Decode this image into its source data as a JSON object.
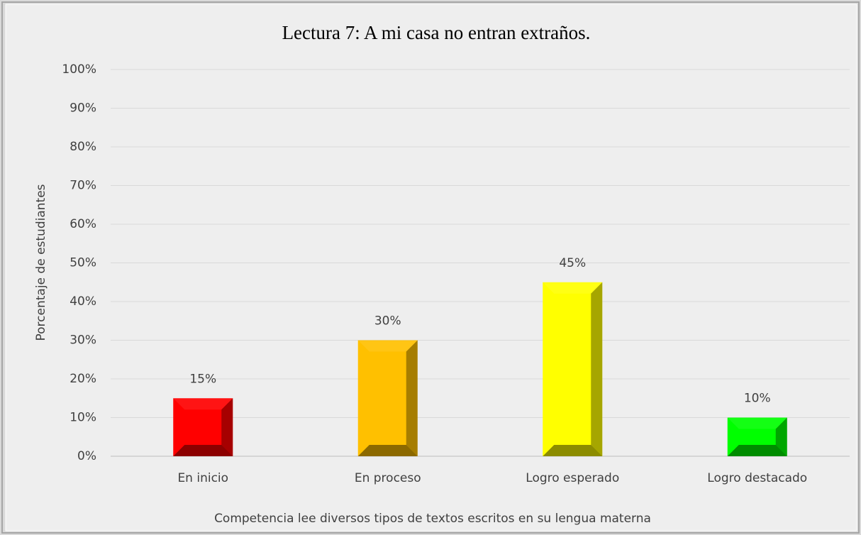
{
  "chart_data": {
    "type": "bar",
    "title": "Lectura 7: A mi casa no entran extraños.",
    "y_label": "Porcentaje de estudiantes",
    "x_label": "Competencia lee diversos tipos de textos escritos en su lengua materna",
    "categories": [
      "En inicio",
      "En proceso",
      "Logro esperado",
      "Logro destacado"
    ],
    "values": [
      15,
      30,
      45,
      10
    ],
    "value_labels": [
      "15%",
      "30%",
      "45%",
      "10%"
    ],
    "colors": [
      "#ff0000",
      "#ffc000",
      "#ffff00",
      "#00ff00"
    ],
    "ylim": [
      0,
      100
    ],
    "yticks": [
      {
        "value": 0,
        "label": "0%"
      },
      {
        "value": 10,
        "label": "10%"
      },
      {
        "value": 20,
        "label": "20%"
      },
      {
        "value": 30,
        "label": "30%"
      },
      {
        "value": 40,
        "label": "40%"
      },
      {
        "value": 50,
        "label": "50%"
      },
      {
        "value": 60,
        "label": "60%"
      },
      {
        "value": 70,
        "label": "70%"
      },
      {
        "value": 80,
        "label": "80%"
      },
      {
        "value": 90,
        "label": "90%"
      },
      {
        "value": 100,
        "label": "100%"
      }
    ],
    "grid": true
  }
}
